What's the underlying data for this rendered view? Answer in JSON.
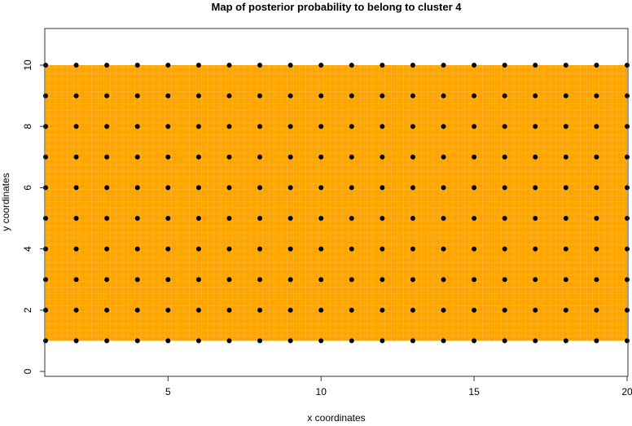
{
  "chart_data": {
    "type": "heatmap",
    "title": "Map of posterior probability to belong to cluster  4",
    "xlabel": "x coordinates",
    "ylabel": "y coordinates",
    "xlim": [
      1,
      20
    ],
    "ylim": [
      -0.2,
      11.2
    ],
    "x_ticks": [
      "5",
      "10",
      "15",
      "20"
    ],
    "y_ticks": [
      "0",
      "2",
      "4",
      "6",
      "8",
      "10"
    ],
    "grid": false,
    "fill_color": "#FFA500",
    "point_color": "#000000",
    "posterior_probability": 1,
    "points": {
      "x": [
        1,
        2,
        3,
        4,
        5,
        6,
        7,
        8,
        9,
        10,
        11,
        12,
        13,
        14,
        15,
        16,
        17,
        18,
        19,
        20
      ],
      "y": [
        1,
        2,
        3,
        4,
        5,
        6,
        7,
        8,
        9,
        10
      ]
    }
  }
}
